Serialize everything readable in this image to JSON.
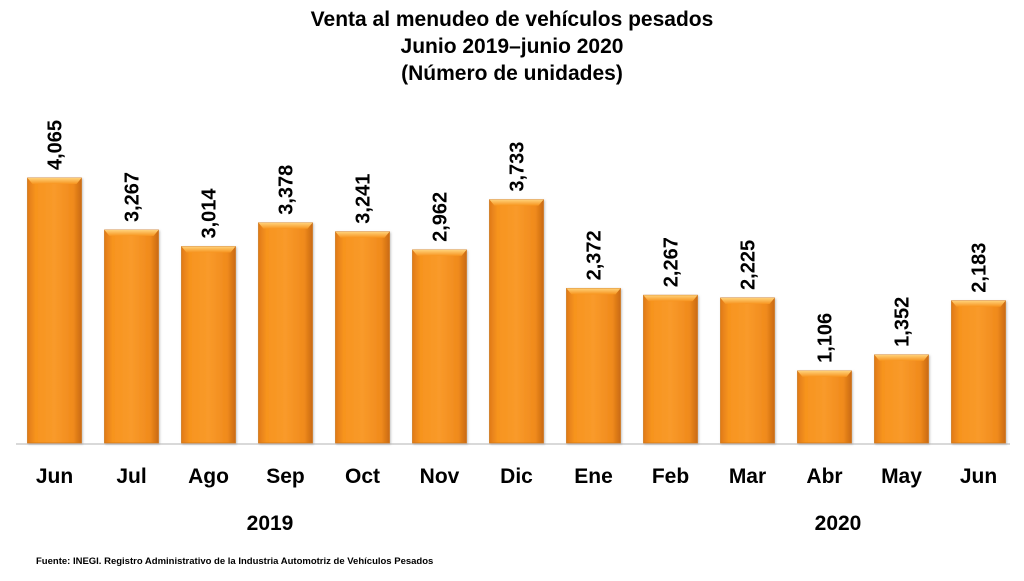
{
  "chart_data": {
    "type": "bar",
    "title": "Venta al menudeo de vehículos pesados",
    "subtitle_lines": [
      "Junio 2019–junio 2020",
      "(Número de unidades)"
    ],
    "categories": [
      "Jun",
      "Jul",
      "Ago",
      "Sep",
      "Oct",
      "Nov",
      "Dic",
      "Ene",
      "Feb",
      "Mar",
      "Abr",
      "May",
      "Jun"
    ],
    "values": [
      4065,
      3267,
      3014,
      3378,
      3241,
      2962,
      3733,
      2372,
      2267,
      2225,
      1106,
      1352,
      2183
    ],
    "value_labels": [
      "4,065",
      "3,267",
      "3,014",
      "3,378",
      "3,241",
      "2,962",
      "3,733",
      "2,372",
      "2,267",
      "2,225",
      "1,106",
      "1,352",
      "2,183"
    ],
    "year_groups": [
      {
        "label": "2019",
        "from_index": 0,
        "to_index": 6
      },
      {
        "label": "2020",
        "from_index": 7,
        "to_index": 12
      }
    ],
    "xlabel": "",
    "ylabel": "",
    "ylim": [
      0,
      4065
    ],
    "grid": false,
    "legend": "none",
    "bar_color": "#F7941E",
    "source": "Fuente: INEGI. Registro Administrativo de la Industria Automotriz de Vehículos Pesados"
  }
}
